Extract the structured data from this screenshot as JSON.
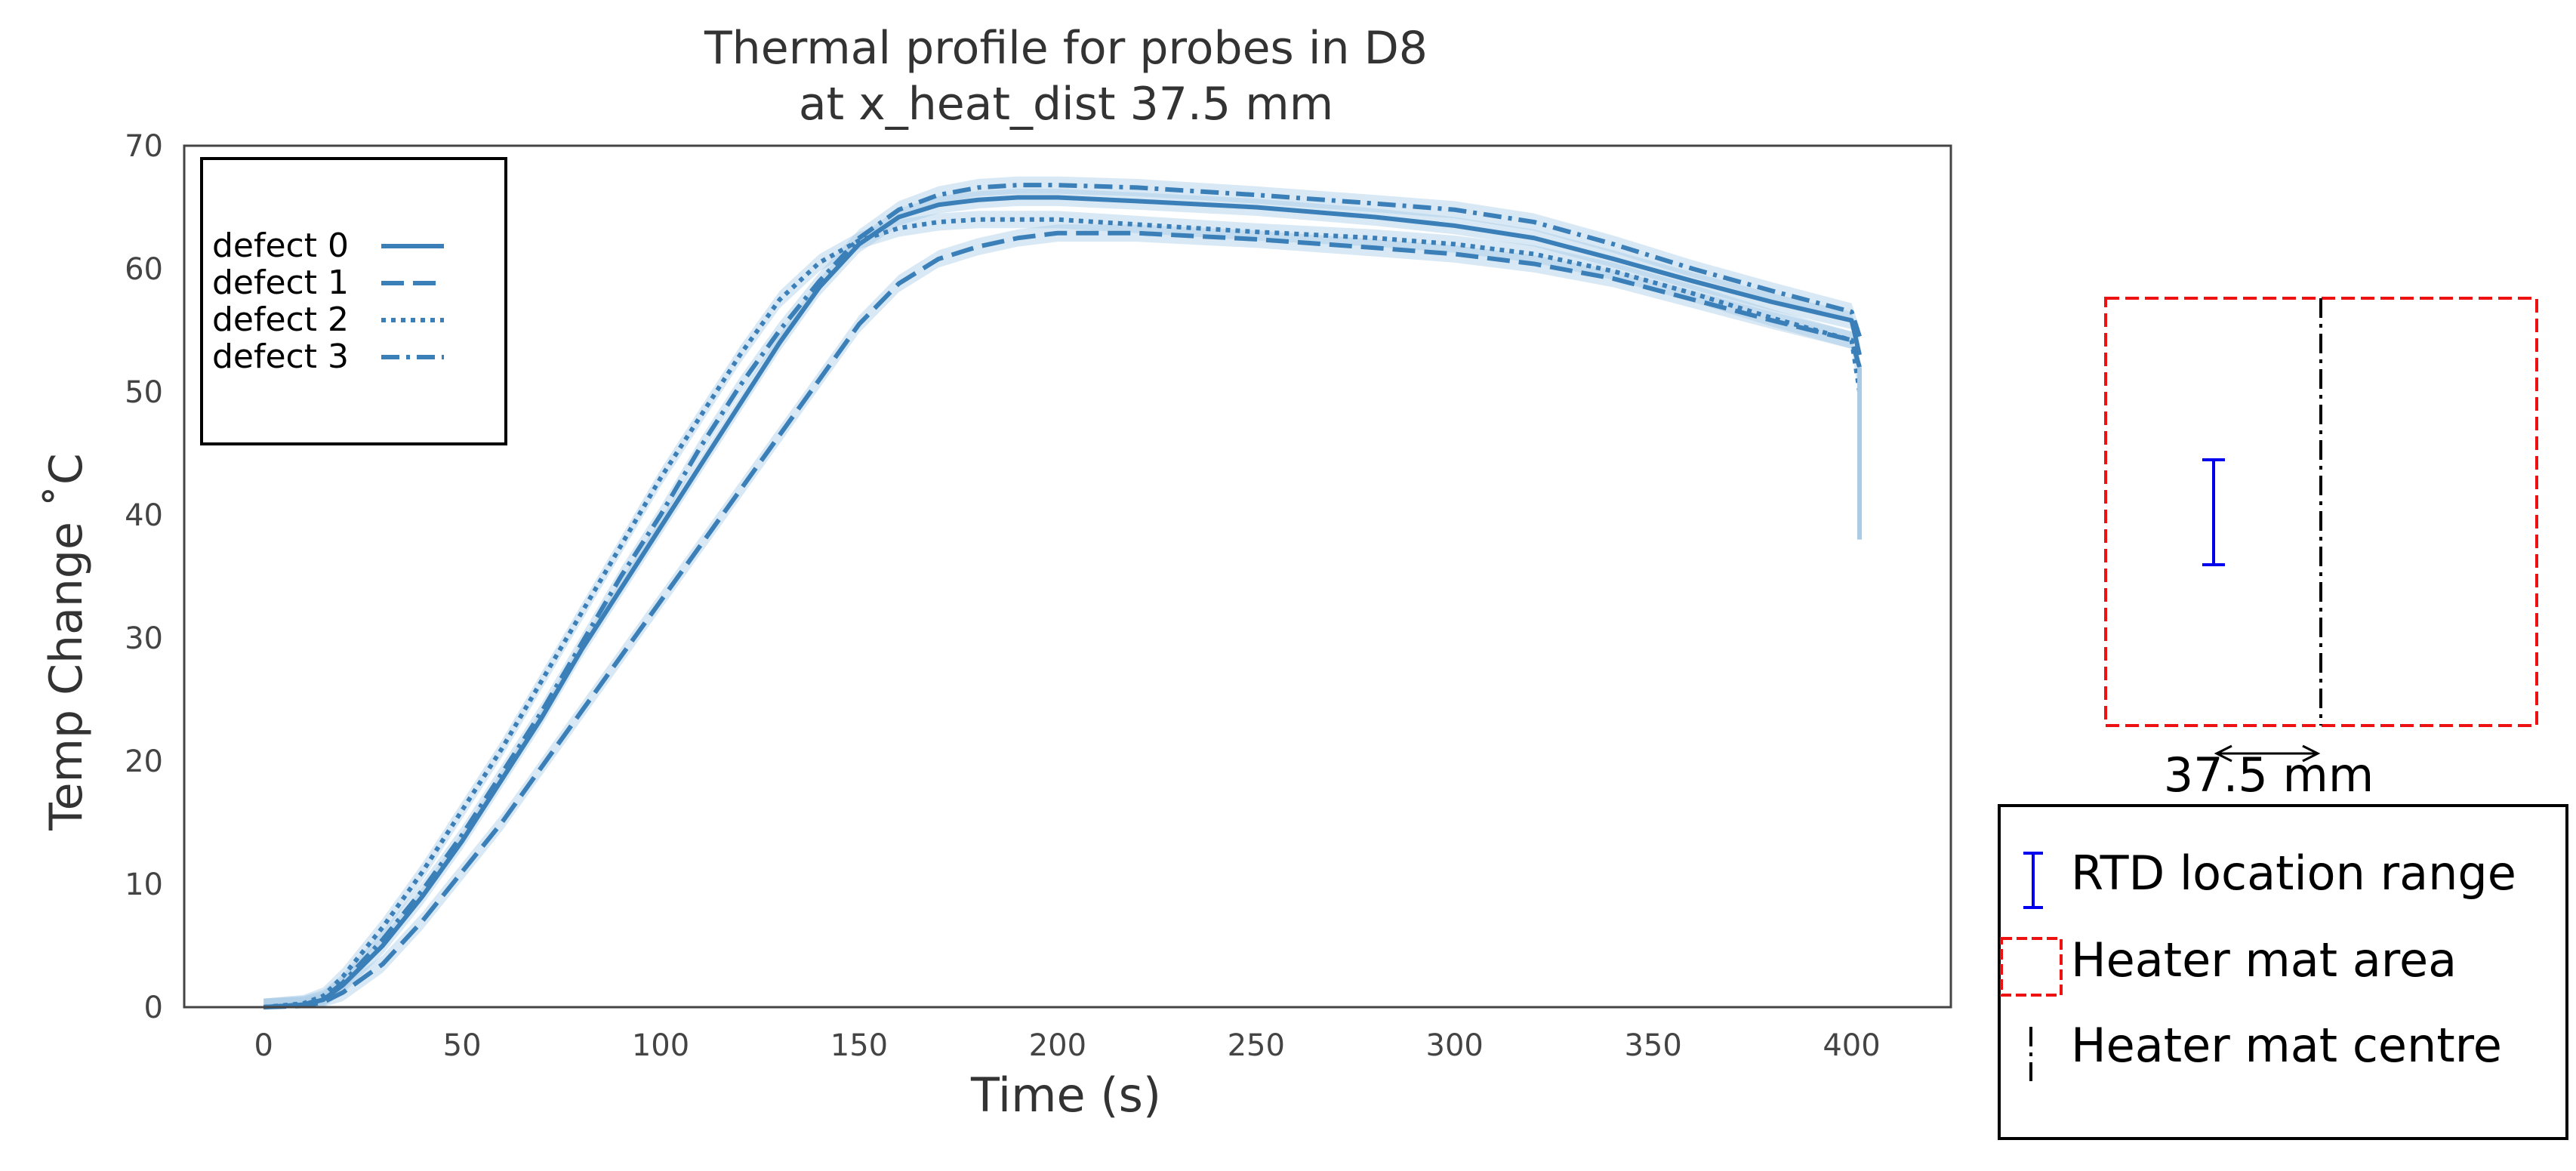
{
  "chart_data": {
    "type": "line",
    "title": "Thermal profile for probes in D8",
    "subtitle": "at x_heat_dist 37.5 mm",
    "xlabel": "Time (s)",
    "ylabel": "Temp Change ˚C",
    "xlim": [
      -20,
      425
    ],
    "ylim": [
      0,
      70
    ],
    "xticks": [
      0,
      50,
      100,
      150,
      200,
      250,
      300,
      350,
      400
    ],
    "yticks": [
      0,
      10,
      20,
      30,
      40,
      50,
      60,
      70
    ],
    "grid": false,
    "legend_position": "top-left",
    "series": [
      {
        "name": "defect 0",
        "style": "solid",
        "x": [
          0,
          10,
          15,
          20,
          30,
          40,
          50,
          60,
          70,
          80,
          90,
          100,
          110,
          120,
          130,
          140,
          150,
          160,
          170,
          180,
          190,
          200,
          220,
          250,
          280,
          300,
          320,
          340,
          360,
          380,
          400,
          402
        ],
        "y": [
          0,
          0.2,
          0.6,
          1.8,
          5,
          9,
          13.5,
          18.5,
          23.5,
          29,
          34,
          39,
          44,
          49,
          54,
          58.5,
          62,
          64.2,
          65.2,
          65.6,
          65.8,
          65.8,
          65.5,
          65,
          64.2,
          63.5,
          62.5,
          60.8,
          59,
          57.3,
          55.8,
          53
        ]
      },
      {
        "name": "defect 1",
        "style": "dashed",
        "x": [
          0,
          10,
          15,
          20,
          30,
          40,
          50,
          60,
          70,
          80,
          90,
          100,
          110,
          120,
          130,
          140,
          150,
          160,
          170,
          180,
          190,
          200,
          220,
          250,
          280,
          300,
          320,
          340,
          360,
          380,
          400,
          402
        ],
        "y": [
          0,
          0.1,
          0.4,
          1.2,
          3.5,
          7,
          11,
          15,
          19.5,
          24,
          28.5,
          33,
          37.5,
          42,
          46.5,
          51,
          55.5,
          58.8,
          60.8,
          61.8,
          62.5,
          62.9,
          62.9,
          62.4,
          61.7,
          61.2,
          60.4,
          59.2,
          57.5,
          55.8,
          54.2,
          52
        ]
      },
      {
        "name": "defect 2",
        "style": "dotted",
        "x": [
          0,
          10,
          15,
          20,
          30,
          40,
          50,
          60,
          70,
          80,
          90,
          100,
          110,
          120,
          130,
          140,
          150,
          160,
          170,
          180,
          190,
          200,
          220,
          250,
          280,
          300,
          320,
          340,
          360,
          380,
          400,
          402
        ],
        "y": [
          0,
          0.3,
          0.9,
          2.5,
          6.5,
          11,
          16,
          21,
          26.5,
          32,
          37.5,
          43,
          48,
          53,
          57.5,
          60.5,
          62.3,
          63.3,
          63.8,
          64,
          64,
          64,
          63.6,
          63,
          62.5,
          62,
          61.2,
          59.8,
          58,
          56,
          54.2,
          50
        ]
      },
      {
        "name": "defect 3",
        "style": "dashdot",
        "x": [
          0,
          10,
          15,
          20,
          30,
          40,
          50,
          60,
          70,
          80,
          90,
          100,
          110,
          120,
          130,
          140,
          150,
          160,
          170,
          180,
          190,
          200,
          220,
          250,
          280,
          300,
          320,
          340,
          360,
          380,
          400,
          402
        ],
        "y": [
          0,
          0.2,
          0.7,
          2,
          5.5,
          9.5,
          14,
          19,
          24,
          29.5,
          35,
          40,
          45.5,
          50.5,
          55,
          59,
          62.5,
          64.8,
          66,
          66.6,
          66.8,
          66.8,
          66.6,
          66,
          65.3,
          64.8,
          63.8,
          62,
          60,
          58.2,
          56.5,
          54.5
        ]
      }
    ]
  },
  "colors": {
    "series": "#3b7fb8",
    "band": "#a9cbe6",
    "heater_mat": "#ee1111",
    "rtd": "#0000ee",
    "centre": "#000000",
    "axes": "#444444"
  },
  "diagram": {
    "dimension_label": "37.5 mm",
    "legend": [
      {
        "icon": "rtd-range-icon",
        "label": "RTD location range"
      },
      {
        "icon": "heater-mat-icon",
        "label": "Heater mat area"
      },
      {
        "icon": "centre-line-icon",
        "label": "Heater mat centre"
      }
    ]
  }
}
